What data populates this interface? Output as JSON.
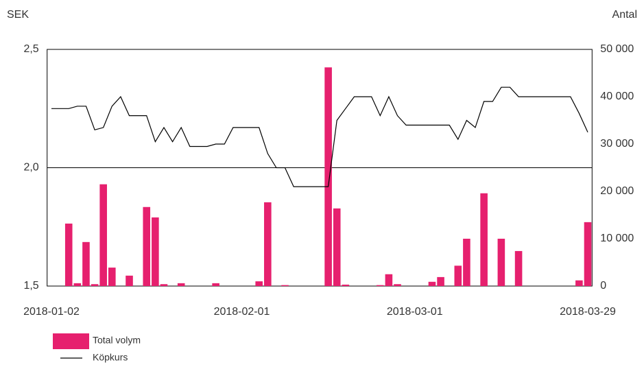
{
  "chart_data": {
    "type": "bar",
    "y_label": "SEK",
    "y2_label": "Antal",
    "categories": [
      "2018-01-02",
      null,
      null,
      null,
      null,
      null,
      null,
      null,
      null,
      null,
      null,
      null,
      null,
      null,
      null,
      null,
      null,
      null,
      null,
      null,
      null,
      null,
      "2018-02-01",
      null,
      null,
      null,
      null,
      null,
      null,
      null,
      null,
      null,
      null,
      null,
      null,
      null,
      null,
      null,
      null,
      null,
      null,
      null,
      "2018-03-01",
      null,
      null,
      null,
      null,
      null,
      null,
      null,
      null,
      null,
      null,
      null,
      null,
      null,
      null,
      null,
      null,
      null,
      null,
      null,
      "2018-03-29"
    ],
    "ylim": [
      1.5,
      2.5
    ],
    "yticks": [
      {
        "value": 1.5,
        "label": "1,5"
      },
      {
        "value": 2.0,
        "label": "2,0"
      },
      {
        "value": 2.5,
        "label": "2,5"
      }
    ],
    "y2lim": [
      0,
      50000
    ],
    "y2ticks": [
      0,
      {
        "value": 10000,
        "label": "10 000"
      },
      {
        "value": 20000,
        "label": "20 000"
      },
      {
        "value": 30000,
        "label": "30 000"
      },
      {
        "value": 40000,
        "label": "40 000"
      },
      {
        "value": 50000,
        "label": "50 000"
      }
    ],
    "grid": true,
    "legend": "bottom-left",
    "series": [
      {
        "name": "Total volym",
        "type": "bar",
        "axis": "y2",
        "color": "#e6206e",
        "values": [
          0,
          0,
          13200,
          600,
          9300,
          400,
          21500,
          3900,
          0,
          2200,
          0,
          16700,
          14500,
          400,
          0,
          600,
          0,
          0,
          0,
          600,
          0,
          0,
          0,
          0,
          1000,
          17700,
          0,
          200,
          0,
          0,
          0,
          0,
          46200,
          16400,
          300,
          0,
          0,
          0,
          200,
          2500,
          400,
          0,
          0,
          0,
          900,
          1900,
          0,
          4300,
          10000,
          0,
          19600,
          0,
          10000,
          0,
          7400,
          0,
          0,
          0,
          0,
          0,
          0,
          1200,
          13500
        ]
      },
      {
        "name": "Köpkurs",
        "type": "line",
        "color": "#000000",
        "values": [
          2.25,
          2.25,
          2.25,
          2.26,
          2.26,
          2.16,
          2.17,
          2.26,
          2.3,
          2.22,
          2.22,
          2.22,
          2.11,
          2.17,
          2.11,
          2.17,
          2.09,
          2.09,
          2.09,
          2.1,
          2.1,
          2.17,
          2.17,
          2.17,
          2.17,
          2.06,
          2.0,
          2.0,
          1.92,
          1.92,
          1.92,
          1.92,
          1.92,
          2.2,
          2.25,
          2.3,
          2.3,
          2.3,
          2.22,
          2.3,
          2.22,
          2.18,
          2.18,
          2.18,
          2.18,
          2.18,
          2.18,
          2.12,
          2.2,
          2.17,
          2.28,
          2.28,
          2.34,
          2.34,
          2.3,
          2.3,
          2.3,
          2.3,
          2.3,
          2.3,
          2.3,
          2.23,
          2.15
        ]
      }
    ]
  }
}
